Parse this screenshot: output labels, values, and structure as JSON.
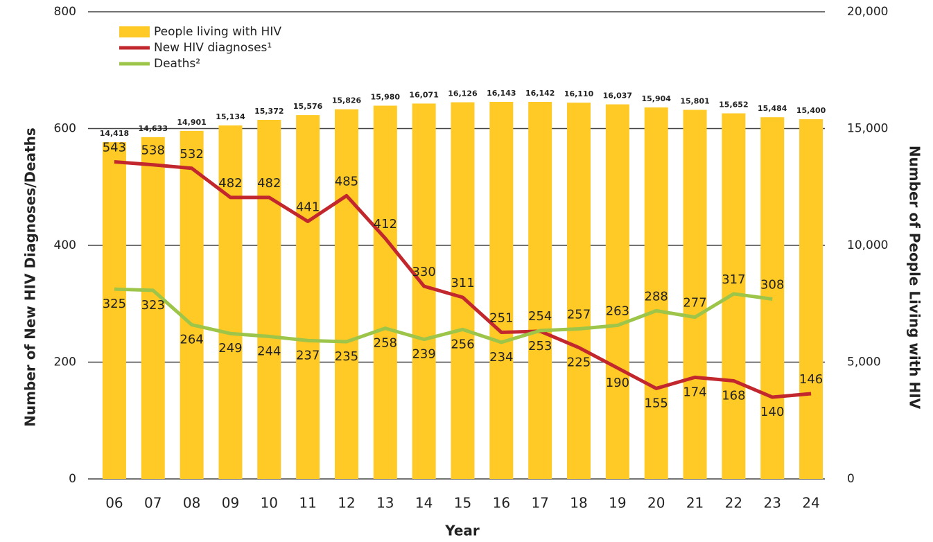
{
  "chart_data": {
    "type": "bar_line",
    "x_label": "Year",
    "y_label": "Number of New HIV Diagnoses/Deaths",
    "y2_label": "Number of People Living with HIV",
    "categories": [
      "06",
      "07",
      "08",
      "09",
      "10",
      "11",
      "12",
      "13",
      "14",
      "15",
      "16",
      "17",
      "18",
      "19",
      "20",
      "21",
      "22",
      "23",
      "24"
    ],
    "series": [
      {
        "name": "People living with HIV",
        "color": "#FFC926",
        "type": "bar",
        "axis": "y2",
        "values": [
          14418,
          14633,
          14901,
          15134,
          15372,
          15576,
          15826,
          15980,
          16071,
          16126,
          16143,
          16142,
          16110,
          16037,
          15904,
          15801,
          15652,
          15484,
          15400
        ],
        "value_labels": [
          "14,418",
          "14,633",
          "14,901",
          "15,134",
          "15,372",
          "15,576",
          "15,826",
          "15,980",
          "16,071",
          "16,126",
          "16,143",
          "16,142",
          "16,110",
          "16,037",
          "15,904",
          "15,801",
          "15,652",
          "15,484",
          "15,400"
        ]
      },
      {
        "name": "New HIV diagnoses¹",
        "color": "#C1272D",
        "type": "line",
        "values": [
          543,
          538,
          532,
          482,
          482,
          441,
          485,
          412,
          330,
          311,
          251,
          253,
          225,
          190,
          155,
          174,
          168,
          140,
          146
        ]
      },
      {
        "name": "Deaths²",
        "color": "#9CC54A",
        "type": "line",
        "values": [
          325,
          323,
          264,
          249,
          244,
          237,
          235,
          258,
          239,
          256,
          234,
          254,
          257,
          263,
          288,
          277,
          317,
          308,
          null
        ]
      }
    ],
    "ylim": [
      0,
      800
    ],
    "yticks": [
      0,
      200,
      400,
      600,
      800
    ],
    "y2lim": [
      0,
      20000
    ],
    "y2ticks": [
      0,
      {
        "value": 5000,
        "label": "5,000"
      },
      {
        "value": 10000,
        "label": "10,000"
      },
      {
        "value": 15000,
        "label": "15,000"
      },
      {
        "value": 20000,
        "label": "20,000"
      }
    ],
    "grid": true,
    "legend": "upper left"
  }
}
